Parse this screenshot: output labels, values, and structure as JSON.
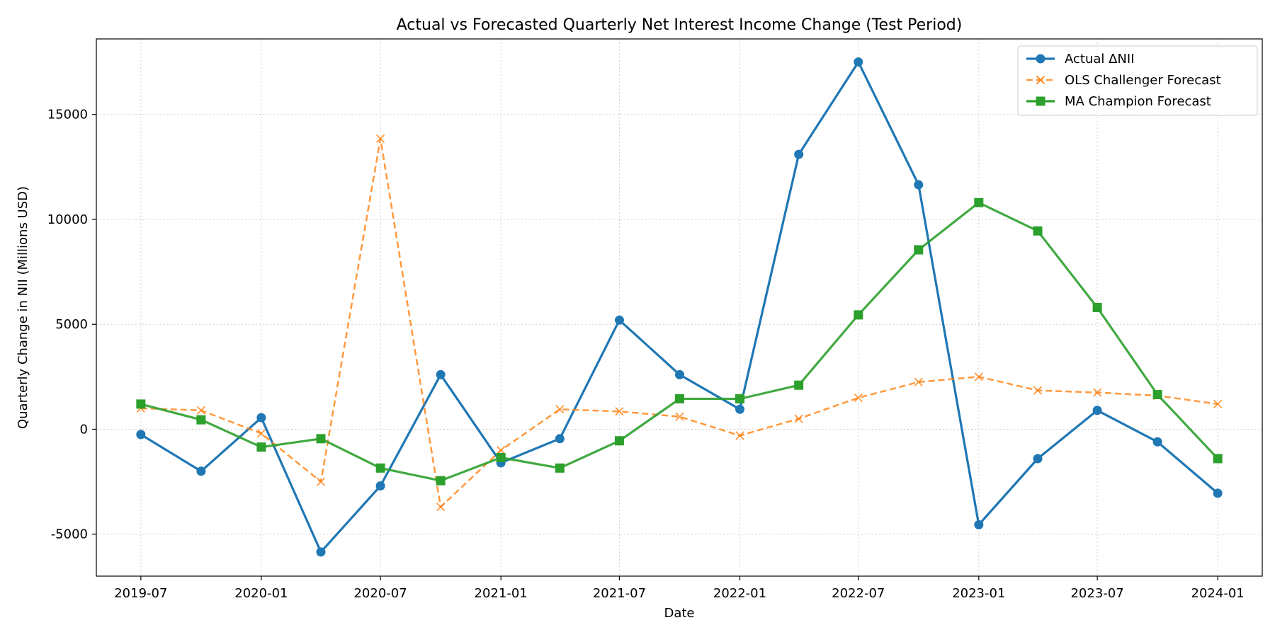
{
  "chart_data": {
    "type": "line",
    "title": "Actual vs Forecasted Quarterly Net Interest Income Change (Test Period)",
    "xlabel": "Date",
    "ylabel": "Quarterly Change in NII (Millions USD)",
    "x": [
      "2019-07-01",
      "2019-10-01",
      "2020-01-01",
      "2020-04-01",
      "2020-07-01",
      "2020-10-01",
      "2021-01-01",
      "2021-04-01",
      "2021-07-01",
      "2021-10-01",
      "2022-01-01",
      "2022-04-01",
      "2022-07-01",
      "2022-10-01",
      "2023-01-01",
      "2023-04-01",
      "2023-07-01",
      "2023-10-01",
      "2024-01-01"
    ],
    "xticks": [
      "2019-07",
      "2020-01",
      "2020-07",
      "2021-01",
      "2021-07",
      "2022-01",
      "2022-07",
      "2023-01",
      "2023-07",
      "2024-01"
    ],
    "yticks": [
      -5000,
      0,
      5000,
      10000,
      15000
    ],
    "xlim": [
      "2019-04-24",
      "2024-03-09"
    ],
    "ylim": [
      -7000,
      18600
    ],
    "grid": true,
    "legend_position": "top-right",
    "series": [
      {
        "name": "Actual ΔNII",
        "color": "#1f77b4",
        "marker": "circle",
        "style": "solid",
        "values": [
          -250,
          -2000,
          550,
          -5850,
          -2700,
          2600,
          -1600,
          -450,
          5200,
          2600,
          950,
          13100,
          17500,
          11650,
          -4550,
          -1400,
          900,
          -600,
          -3050
        ]
      },
      {
        "name": "OLS Challenger Forecast",
        "color": "#ff7f0e",
        "marker": "x",
        "style": "dashed",
        "values": [
          1000,
          900,
          -200,
          -2500,
          13850,
          -3700,
          -1000,
          950,
          850,
          600,
          -300,
          500,
          1500,
          2250,
          2500,
          1850,
          1750,
          1600,
          1200
        ]
      },
      {
        "name": "MA Champion Forecast",
        "color": "#2ca02c",
        "marker": "square",
        "style": "solid",
        "values": [
          1200,
          450,
          -850,
          -450,
          -1850,
          -2450,
          -1350,
          -1850,
          -550,
          1450,
          1450,
          2100,
          5450,
          8550,
          10800,
          9450,
          5800,
          1650,
          -1400
        ]
      }
    ]
  }
}
